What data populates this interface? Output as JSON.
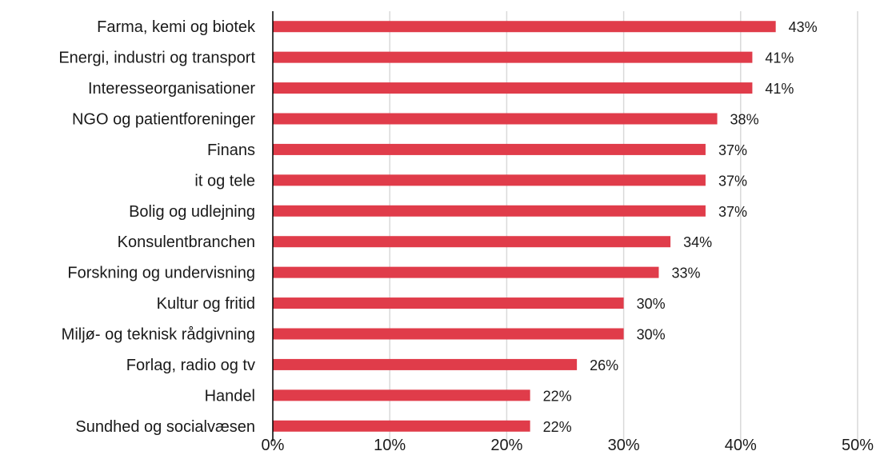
{
  "chart_data": {
    "type": "bar",
    "orientation": "horizontal",
    "categories": [
      "Farma, kemi og biotek",
      "Energi, industri og transport",
      "Interesseorganisationer",
      "NGO og patientforeninger",
      "Finans",
      "it og tele",
      "Bolig og udlejning",
      "Konsulentbranchen",
      "Forskning og undervisning",
      "Kultur og fritid",
      "Miljø- og teknisk rådgivning",
      "Forlag, radio og tv",
      "Handel",
      "Sundhed og socialvæsen"
    ],
    "values": [
      43,
      41,
      41,
      38,
      37,
      37,
      37,
      34,
      33,
      30,
      30,
      26,
      22,
      22
    ],
    "value_labels": [
      "43%",
      "41%",
      "41%",
      "38%",
      "37%",
      "37%",
      "37%",
      "34%",
      "33%",
      "30%",
      "30%",
      "26%",
      "22%",
      "22%"
    ],
    "xlim": [
      0,
      50
    ],
    "x_ticks": [
      0,
      10,
      20,
      30,
      40,
      50
    ],
    "x_tick_labels": [
      "0%",
      "10%",
      "20%",
      "30%",
      "40%",
      "50%"
    ],
    "bar_color": "#e03c4a",
    "grid": true,
    "legend": "none",
    "title": "",
    "xlabel": "",
    "ylabel": ""
  }
}
